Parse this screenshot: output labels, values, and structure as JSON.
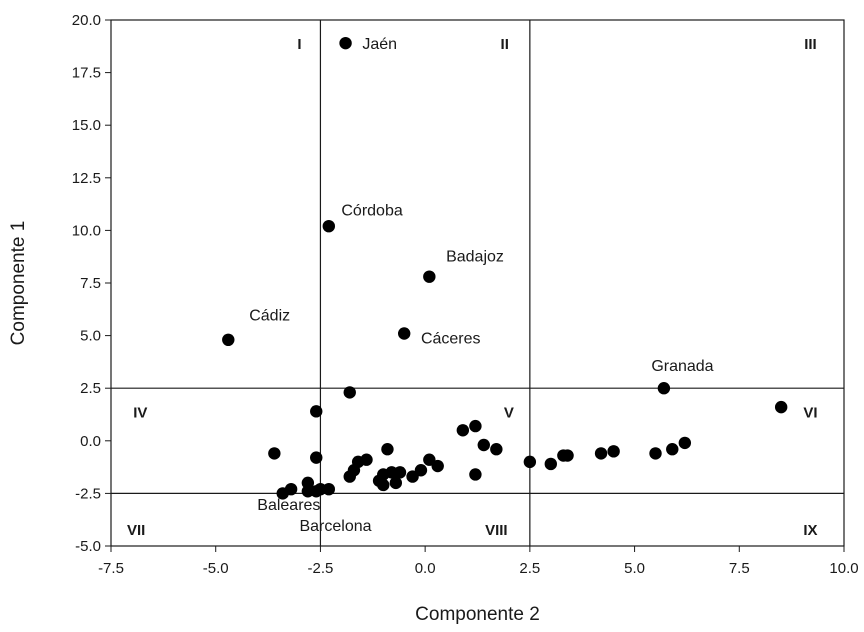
{
  "chart_data": {
    "type": "scatter",
    "title": "",
    "xlabel": "Componente 2",
    "ylabel": "Componente 1",
    "xlim": [
      -7.5,
      10.0
    ],
    "ylim": [
      -5.0,
      20.0
    ],
    "x_ticks": [
      "-7.5",
      "-5.0",
      "-2.5",
      "0.0",
      "2.5",
      "5.0",
      "7.5",
      "10.0"
    ],
    "y_ticks": [
      "-5.0",
      "-2.5",
      "0.0",
      "2.5",
      "5.0",
      "7.5",
      "10.0",
      "12.5",
      "15.0",
      "17.5",
      "20.0"
    ],
    "grid": false,
    "reference_lines": {
      "x": [
        -2.5,
        2.5
      ],
      "y": [
        -2.5,
        2.5
      ]
    },
    "regions": [
      {
        "label": "I",
        "x": -3.0,
        "y": 18.9
      },
      {
        "label": "II",
        "x": 1.9,
        "y": 18.9
      },
      {
        "label": "III",
        "x": 9.2,
        "y": 18.9
      },
      {
        "label": "IV",
        "x": -6.8,
        "y": 1.4
      },
      {
        "label": "V",
        "x": 2.0,
        "y": 1.4
      },
      {
        "label": "VI",
        "x": 9.2,
        "y": 1.4
      },
      {
        "label": "VII",
        "x": -6.9,
        "y": -4.2
      },
      {
        "label": "VIII",
        "x": 1.7,
        "y": -4.2
      },
      {
        "label": "IX",
        "x": 9.2,
        "y": -4.2
      }
    ],
    "labeled_points": [
      {
        "name": "Jaén",
        "x": -1.9,
        "y": 18.9,
        "lx": -1.5,
        "ly": 18.9,
        "anchor": "start"
      },
      {
        "name": "Córdoba",
        "x": -2.3,
        "y": 10.2,
        "lx": -2.0,
        "ly": 11.0,
        "anchor": "start"
      },
      {
        "name": "Badajoz",
        "x": 0.1,
        "y": 7.8,
        "lx": 0.5,
        "ly": 8.8,
        "anchor": "start"
      },
      {
        "name": "Cádiz",
        "x": -4.7,
        "y": 4.8,
        "lx": -4.2,
        "ly": 6.0,
        "anchor": "start"
      },
      {
        "name": "Cáceres",
        "x": -0.5,
        "y": 5.1,
        "lx": -0.1,
        "ly": 4.9,
        "anchor": "start"
      },
      {
        "name": "Granada",
        "x": 5.7,
        "y": 2.5,
        "lx": 5.4,
        "ly": 3.6,
        "anchor": "start"
      },
      {
        "name": "Baleares",
        "x": -3.4,
        "y": -2.5,
        "lx": -2.5,
        "ly": -3.0,
        "anchor": "end"
      },
      {
        "name": "Barcelona",
        "x": -2.6,
        "y": -2.4,
        "lx": -3.0,
        "ly": -4.0,
        "anchor": "start"
      }
    ],
    "points": [
      {
        "x": -1.9,
        "y": 18.9
      },
      {
        "x": -2.3,
        "y": 10.2
      },
      {
        "x": 0.1,
        "y": 7.8
      },
      {
        "x": -4.7,
        "y": 4.8
      },
      {
        "x": -0.5,
        "y": 5.1
      },
      {
        "x": 5.7,
        "y": 2.5
      },
      {
        "x": 8.5,
        "y": 1.6
      },
      {
        "x": -2.6,
        "y": 1.4
      },
      {
        "x": -1.8,
        "y": 2.3
      },
      {
        "x": -3.6,
        "y": -0.6
      },
      {
        "x": -2.6,
        "y": -0.8
      },
      {
        "x": -3.4,
        "y": -2.5
      },
      {
        "x": -3.2,
        "y": -2.3
      },
      {
        "x": -2.8,
        "y": -2.0
      },
      {
        "x": -2.8,
        "y": -2.4
      },
      {
        "x": -2.6,
        "y": -2.4
      },
      {
        "x": -2.5,
        "y": -2.3
      },
      {
        "x": -2.3,
        "y": -2.3
      },
      {
        "x": -1.8,
        "y": -1.7
      },
      {
        "x": -1.7,
        "y": -1.4
      },
      {
        "x": -1.6,
        "y": -1.0
      },
      {
        "x": -1.4,
        "y": -0.9
      },
      {
        "x": -1.1,
        "y": -1.9
      },
      {
        "x": -1.0,
        "y": -1.6
      },
      {
        "x": -1.0,
        "y": -2.1
      },
      {
        "x": -0.9,
        "y": -0.4
      },
      {
        "x": -0.8,
        "y": -1.5
      },
      {
        "x": -0.7,
        "y": -2.0
      },
      {
        "x": -0.6,
        "y": -1.5
      },
      {
        "x": -0.3,
        "y": -1.7
      },
      {
        "x": -0.1,
        "y": -1.4
      },
      {
        "x": 0.1,
        "y": -0.9
      },
      {
        "x": 0.3,
        "y": -1.2
      },
      {
        "x": 0.9,
        "y": 0.5
      },
      {
        "x": 1.2,
        "y": 0.7
      },
      {
        "x": 1.2,
        "y": -1.6
      },
      {
        "x": 1.4,
        "y": -0.2
      },
      {
        "x": 1.7,
        "y": -0.4
      },
      {
        "x": 2.5,
        "y": -1.0
      },
      {
        "x": 3.0,
        "y": -1.1
      },
      {
        "x": 3.3,
        "y": -0.7
      },
      {
        "x": 3.4,
        "y": -0.7
      },
      {
        "x": 4.2,
        "y": -0.6
      },
      {
        "x": 4.5,
        "y": -0.5
      },
      {
        "x": 5.5,
        "y": -0.6
      },
      {
        "x": 5.9,
        "y": -0.4
      },
      {
        "x": 6.2,
        "y": -0.1
      }
    ]
  }
}
